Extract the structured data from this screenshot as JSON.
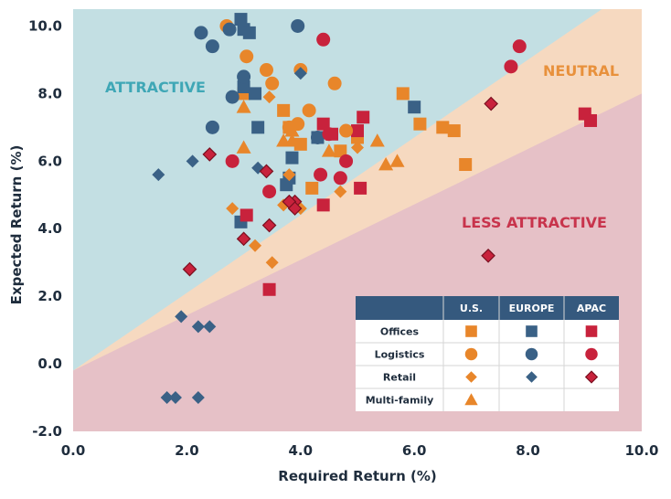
{
  "chart_data": {
    "type": "scatter",
    "xlabel": "Required Return (%)",
    "ylabel": "Expected Return (%)",
    "xlim": [
      0,
      10
    ],
    "ylim": [
      -2,
      10.5
    ],
    "xticks": [
      "0.0",
      "2.0",
      "4.0",
      "6.0",
      "8.0",
      "10.0"
    ],
    "yticks": [
      "-2.0",
      "0.0",
      "2.0",
      "4.0",
      "6.0",
      "8.0",
      "10.0"
    ],
    "grid": false,
    "regions": [
      {
        "name": "ATTRACTIVE",
        "color": "#c3dfe3",
        "label_color": "#3fa7b6",
        "boundary_lower": [
          [
            0,
            -0.2
          ],
          [
            9.3,
            10.5
          ]
        ]
      },
      {
        "name": "NEUTRAL",
        "color": "#f6d9c0",
        "label_color": "#e8913c"
      },
      {
        "name": "LESS ATTRACTIVE",
        "color": "#e6c1c7",
        "label_color": "#c8344c",
        "boundary_upper": [
          [
            0,
            -0.2
          ],
          [
            10,
            8.0
          ]
        ]
      }
    ],
    "colors": {
      "U.S.": "#e8862a",
      "EUROPE": "#3a6186",
      "APAC": "#c8223c"
    },
    "markers": {
      "Offices": "square",
      "Logistics": "circle",
      "Retail": "diamond",
      "Multi-family": "triangle"
    },
    "legend": {
      "placement": "bottom-right",
      "columns": [
        "U.S.",
        "EUROPE",
        "APAC"
      ],
      "rows": [
        "Offices",
        "Logistics",
        "Retail",
        "Multi-family"
      ]
    },
    "series": [
      {
        "name": "Offices",
        "region": "U.S.",
        "points": [
          [
            3.0,
            8.0
          ],
          [
            3.7,
            7.5
          ],
          [
            4.0,
            6.5
          ],
          [
            4.7,
            6.3
          ],
          [
            5.0,
            6.7
          ],
          [
            5.8,
            8.0
          ],
          [
            6.1,
            7.1
          ],
          [
            6.5,
            7.0
          ],
          [
            6.7,
            6.9
          ],
          [
            6.9,
            5.9
          ],
          [
            4.2,
            5.2
          ],
          [
            3.8,
            7.0
          ]
        ]
      },
      {
        "name": "Offices",
        "region": "EUROPE",
        "points": [
          [
            2.95,
            10.2
          ],
          [
            3.0,
            9.9
          ],
          [
            3.1,
            9.8
          ],
          [
            3.0,
            8.2
          ],
          [
            3.2,
            8.0
          ],
          [
            3.25,
            7.0
          ],
          [
            3.85,
            6.1
          ],
          [
            3.8,
            5.5
          ],
          [
            3.75,
            5.3
          ],
          [
            4.3,
            6.7
          ],
          [
            6.0,
            7.6
          ],
          [
            2.95,
            4.2
          ]
        ]
      },
      {
        "name": "Offices",
        "region": "APAC",
        "points": [
          [
            4.4,
            7.1
          ],
          [
            4.55,
            6.8
          ],
          [
            5.0,
            6.9
          ],
          [
            5.1,
            7.3
          ],
          [
            5.05,
            5.2
          ],
          [
            4.4,
            4.7
          ],
          [
            3.05,
            4.4
          ],
          [
            3.45,
            2.2
          ],
          [
            9.0,
            7.4
          ],
          [
            9.1,
            7.2
          ]
        ]
      },
      {
        "name": "Logistics",
        "region": "U.S.",
        "points": [
          [
            2.7,
            10.0
          ],
          [
            3.05,
            9.1
          ],
          [
            3.4,
            8.7
          ],
          [
            3.5,
            8.3
          ],
          [
            4.0,
            8.7
          ],
          [
            4.6,
            8.3
          ],
          [
            4.15,
            7.5
          ],
          [
            3.95,
            7.1
          ],
          [
            4.8,
            6.9
          ],
          [
            3.8,
            7.0
          ]
        ]
      },
      {
        "name": "Logistics",
        "region": "EUROPE",
        "points": [
          [
            2.25,
            9.8
          ],
          [
            2.45,
            9.4
          ],
          [
            2.75,
            9.9
          ],
          [
            3.95,
            10.0
          ],
          [
            2.8,
            7.9
          ],
          [
            2.45,
            7.0
          ],
          [
            3.0,
            8.5
          ],
          [
            4.3,
            6.7
          ]
        ]
      },
      {
        "name": "Logistics",
        "region": "APAC",
        "points": [
          [
            4.4,
            9.6
          ],
          [
            7.85,
            9.4
          ],
          [
            7.7,
            8.8
          ],
          [
            2.8,
            6.0
          ],
          [
            3.45,
            5.1
          ],
          [
            4.35,
            5.6
          ],
          [
            4.7,
            5.5
          ],
          [
            4.8,
            6.0
          ],
          [
            4.5,
            6.8
          ]
        ]
      },
      {
        "name": "Retail",
        "region": "U.S.",
        "points": [
          [
            3.45,
            7.9
          ],
          [
            5.0,
            6.4
          ],
          [
            4.7,
            5.1
          ],
          [
            4.0,
            4.6
          ],
          [
            3.7,
            4.7
          ],
          [
            2.8,
            4.6
          ],
          [
            3.2,
            3.5
          ],
          [
            3.5,
            3.0
          ],
          [
            3.8,
            5.6
          ]
        ]
      },
      {
        "name": "Retail",
        "region": "EUROPE",
        "points": [
          [
            1.5,
            5.6
          ],
          [
            2.1,
            6.0
          ],
          [
            3.25,
            5.8
          ],
          [
            4.0,
            8.6
          ],
          [
            1.9,
            1.4
          ],
          [
            2.2,
            1.1
          ],
          [
            2.4,
            1.1
          ],
          [
            1.65,
            -1.0
          ],
          [
            1.8,
            -1.0
          ],
          [
            2.2,
            -1.0
          ]
        ]
      },
      {
        "name": "Retail",
        "region": "APAC",
        "points": [
          [
            2.4,
            6.2
          ],
          [
            3.4,
            5.7
          ],
          [
            3.9,
            4.8
          ],
          [
            3.8,
            4.8
          ],
          [
            3.9,
            4.6
          ],
          [
            3.45,
            4.1
          ],
          [
            3.0,
            3.7
          ],
          [
            2.05,
            2.8
          ],
          [
            7.3,
            3.2
          ],
          [
            7.35,
            7.7
          ]
        ]
      },
      {
        "name": "Multi-family",
        "region": "U.S.",
        "points": [
          [
            3.0,
            7.6
          ],
          [
            3.0,
            6.4
          ],
          [
            3.7,
            6.6
          ],
          [
            3.85,
            6.6
          ],
          [
            3.85,
            6.9
          ],
          [
            4.5,
            6.3
          ],
          [
            5.35,
            6.6
          ],
          [
            5.5,
            5.9
          ],
          [
            5.7,
            6.0
          ]
        ]
      }
    ]
  }
}
